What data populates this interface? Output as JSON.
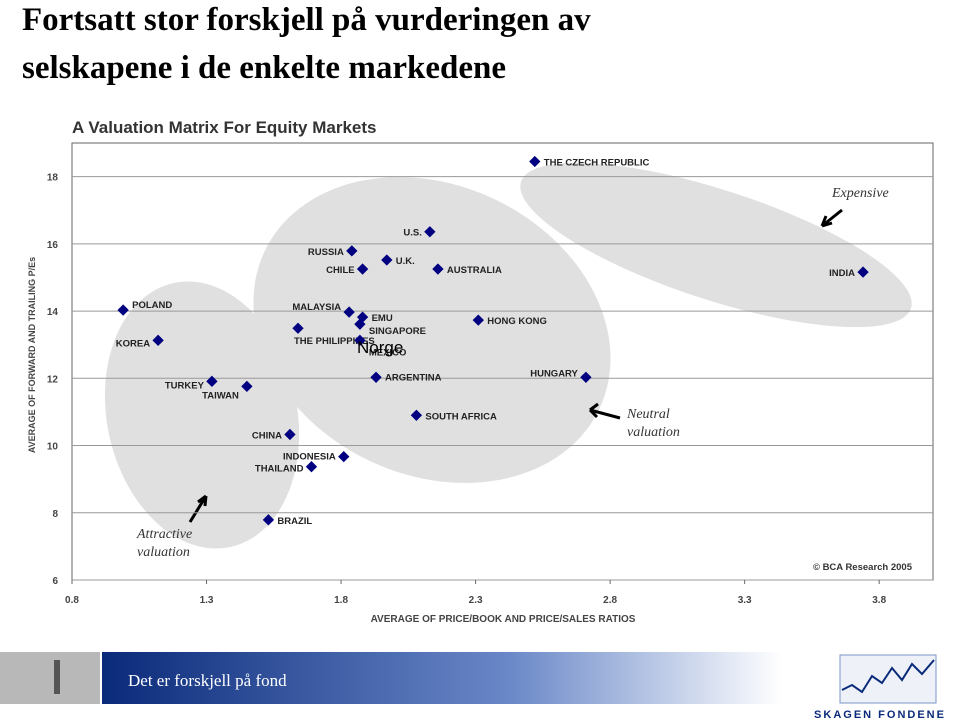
{
  "slide_title": "Fortsatt stor forskjell på vurderingen av selskapene i de enkelte markedene",
  "chart_data": {
    "type": "scatter",
    "title": "A Valuation Matrix For Equity Markets",
    "xlabel": "AVERAGE OF PRICE/BOOK AND PRICE/SALES RATIOS",
    "ylabel": "AVERAGE OF FORWARD AND TRAILING P/Es",
    "labels": [
      "THE CZECH REPUBLIC",
      "INDIA",
      "U.S.",
      "RUSSIA",
      "U.K.",
      "CHILE",
      "AUSTRALIA",
      "POLAND",
      "KOREA",
      "MALAYSIA",
      "EMU",
      "SINGAPORE",
      "THE PHILIPPINES",
      "MEXICO",
      "HONG KONG",
      "TURKEY",
      "TAIWAN",
      "ARGENTINA",
      "HUNGARY",
      "SOUTH AFRICA",
      "CHINA",
      "INDONESIA",
      "THAILAND",
      "BRAZIL"
    ],
    "x": [
      2.52,
      3.74,
      2.13,
      1.84,
      1.97,
      1.88,
      2.16,
      0.99,
      1.12,
      1.83,
      1.88,
      1.87,
      1.64,
      1.87,
      2.31,
      1.32,
      1.45,
      1.93,
      2.71,
      2.08,
      1.61,
      1.81,
      1.69,
      1.53
    ],
    "values": [
      18.45,
      15.16,
      16.36,
      15.79,
      15.52,
      15.25,
      15.25,
      14.03,
      13.13,
      13.97,
      13.82,
      13.61,
      13.49,
      13.13,
      13.73,
      11.91,
      11.76,
      12.03,
      12.03,
      10.9,
      10.33,
      9.67,
      9.37,
      7.79
    ],
    "color": "#000080",
    "xlim": [
      0.8,
      4.0
    ],
    "ylim": [
      6,
      19
    ],
    "xticks": [
      0.8,
      1.3,
      1.8,
      2.3,
      2.8,
      3.3,
      3.8
    ],
    "yticks": [
      6,
      8,
      10,
      12,
      14,
      16,
      18
    ],
    "grid": true,
    "annotations": [
      "Expensive",
      "Neutral valuation",
      "Attractive valuation",
      "© BCA Research 2005",
      "Norge"
    ]
  },
  "footer": {
    "tagline": "Det er forskjell på fond",
    "logo": "SKAGEN FONDENE"
  }
}
